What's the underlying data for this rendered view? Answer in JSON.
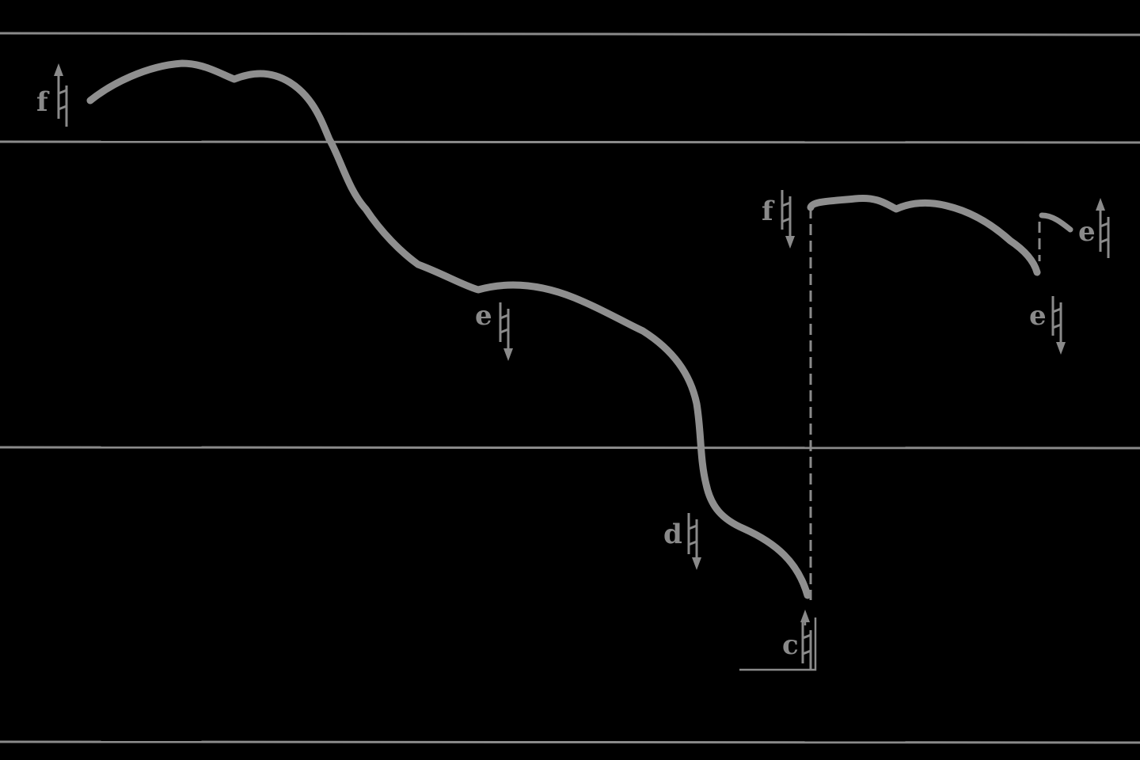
{
  "colors": {
    "background": "#000000",
    "ink": "#8a8a8a"
  },
  "pitch_markers": [
    {
      "letter": "f",
      "accidental": "natural",
      "arrow": "up"
    },
    {
      "letter": "e",
      "accidental": "natural",
      "arrow": "down"
    },
    {
      "letter": "d",
      "accidental": "natural",
      "arrow": "down"
    },
    {
      "letter": "c",
      "accidental": "natural",
      "arrow": "up"
    },
    {
      "letter": "f",
      "accidental": "natural",
      "arrow": "down"
    },
    {
      "letter": "e",
      "accidental": "natural",
      "arrow": "down"
    },
    {
      "letter": "e",
      "accidental": "natural",
      "arrow": "up"
    }
  ]
}
